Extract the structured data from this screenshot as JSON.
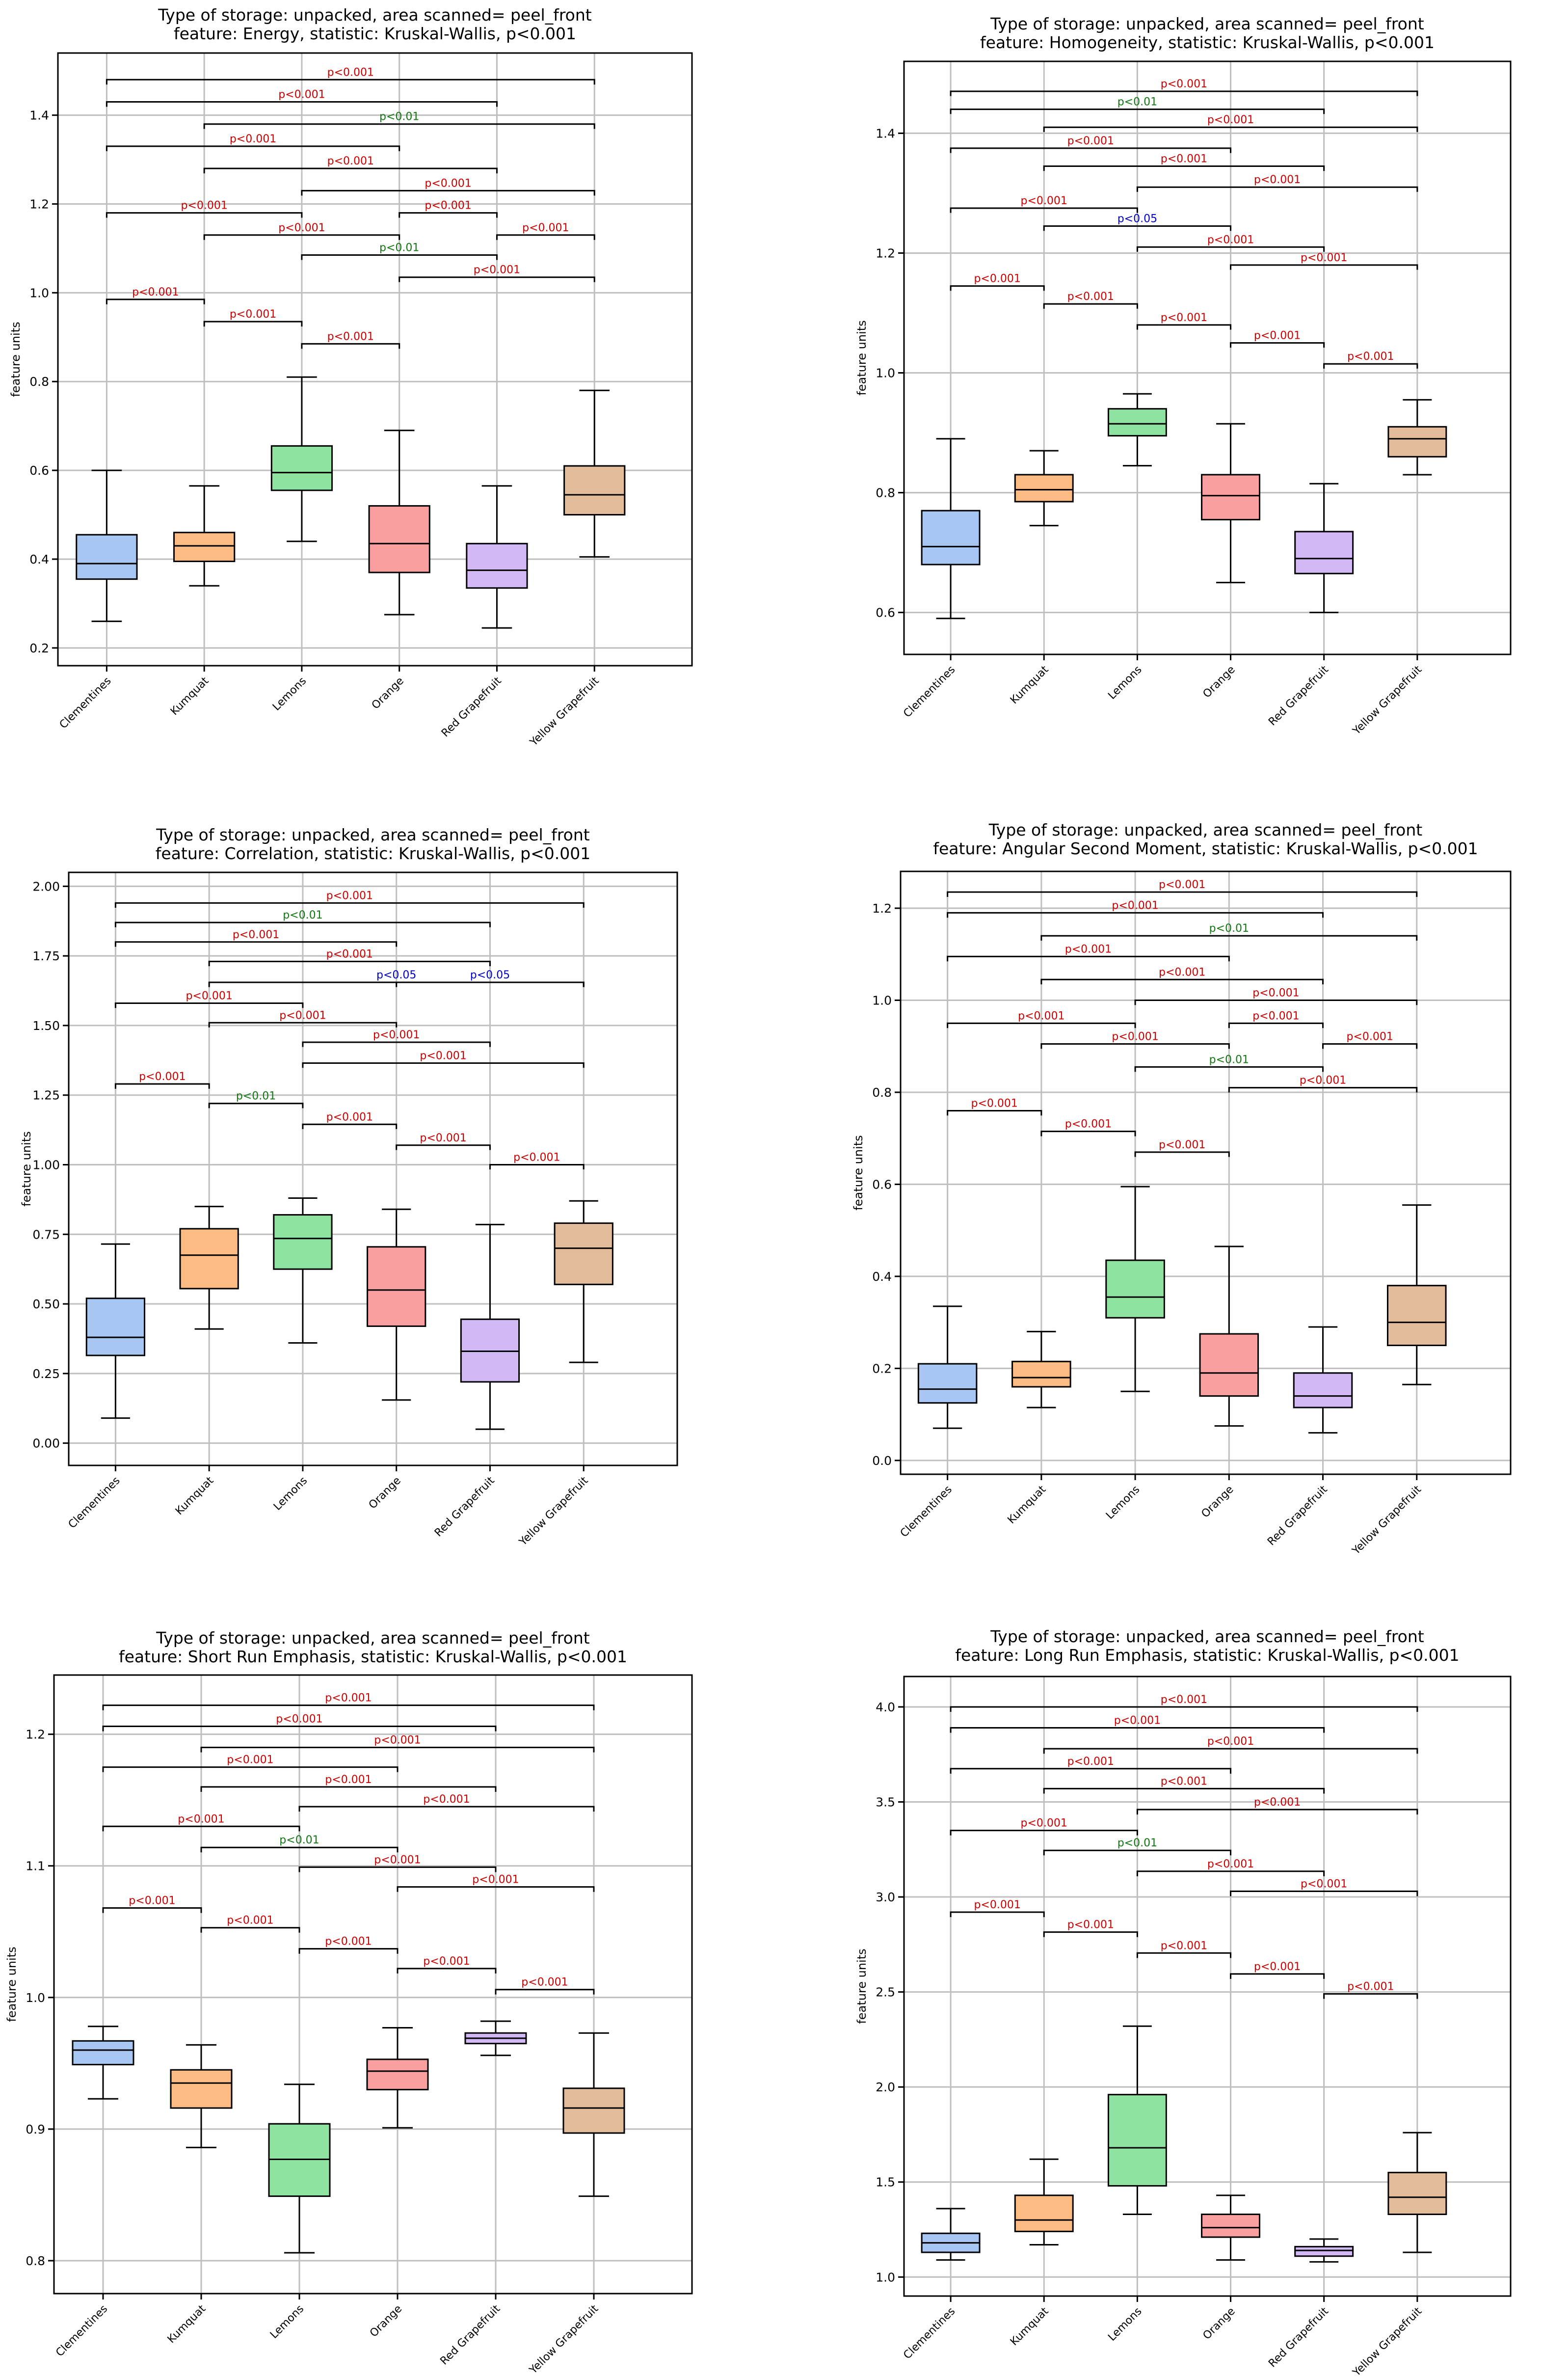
{
  "common": {
    "categories": [
      "Clementines",
      "Kumquat",
      "Lemons",
      "Orange",
      "Red Grapefruit",
      "Yellow Grapefruit"
    ],
    "ylabel": "feature units",
    "colors": [
      "#a7c7f2",
      "#fdbb84",
      "#8fe3a0",
      "#fa9f9f",
      "#d2b8f5",
      "#e2bc98"
    ],
    "sig_colors": {
      "p<0.001": "#cc0000",
      "p<0.01": "#117711",
      "p<0.05": "#0000cc"
    },
    "pairs": [
      [
        0,
        5
      ],
      [
        0,
        4
      ],
      [
        1,
        5
      ],
      [
        0,
        3
      ],
      [
        1,
        4
      ],
      [
        2,
        5
      ],
      [
        0,
        2
      ],
      [
        1,
        3
      ],
      [
        2,
        4
      ],
      [
        3,
        5
      ],
      [
        0,
        1
      ],
      [
        1,
        2
      ],
      [
        2,
        3
      ],
      [
        3,
        4
      ],
      [
        4,
        5
      ]
    ]
  },
  "chart_data": [
    {
      "type": "box",
      "title_line1": "Type of storage: unpacked, area scanned= peel_front",
      "title_line2": "feature: Energy, statistic: Kruskal-Wallis, p<0.001",
      "xlabel": "",
      "ylabel": "feature units",
      "ylim": [
        0.16,
        1.54
      ],
      "yticks": [
        0.2,
        0.4,
        0.6,
        0.8,
        1.0,
        1.2,
        1.4
      ],
      "yticklabels": [
        "0.2",
        "0.4",
        "0.6",
        "0.8",
        "1.0",
        "1.2",
        "1.4"
      ],
      "boxes": [
        {
          "min": 0.26,
          "q1": 0.355,
          "median": 0.39,
          "q3": 0.455,
          "max": 0.6
        },
        {
          "min": 0.34,
          "q1": 0.395,
          "median": 0.43,
          "q3": 0.46,
          "max": 0.565
        },
        {
          "min": 0.44,
          "q1": 0.555,
          "median": 0.595,
          "q3": 0.655,
          "max": 0.81
        },
        {
          "min": 0.275,
          "q1": 0.37,
          "median": 0.435,
          "q3": 0.52,
          "max": 0.69
        },
        {
          "min": 0.245,
          "q1": 0.335,
          "median": 0.375,
          "q3": 0.435,
          "max": 0.565
        },
        {
          "min": 0.405,
          "q1": 0.5,
          "median": 0.545,
          "q3": 0.61,
          "max": 0.78
        }
      ],
      "brackets": [
        {
          "y": 1.48,
          "label": "p<0.001"
        },
        {
          "y": 1.43,
          "label": "p<0.001"
        },
        {
          "y": 1.38,
          "label": "p<0.01"
        },
        {
          "y": 1.33,
          "label": "p<0.001"
        },
        {
          "y": 1.28,
          "label": "p<0.001"
        },
        {
          "y": 1.23,
          "label": "p<0.001"
        },
        {
          "y": 1.18,
          "label": "p<0.001"
        },
        {
          "y": 1.13,
          "label": "p<0.001"
        },
        {
          "y": 1.085,
          "label": "p<0.01"
        },
        {
          "y": 1.035,
          "label": "p<0.001"
        },
        {
          "y": 0.985,
          "label": "p<0.001"
        },
        {
          "y": 0.935,
          "label": "p<0.001"
        },
        {
          "y": 0.885,
          "label": "p<0.001"
        },
        {
          "y": 1.18,
          "label": "p<0.001"
        },
        {
          "y": 1.13,
          "label": "p<0.001"
        }
      ]
    },
    {
      "type": "box",
      "title_line1": "Type of storage: unpacked, area scanned= peel_front",
      "title_line2": "feature: Homogeneity, statistic: Kruskal-Wallis, p<0.001",
      "xlabel": "",
      "ylabel": "feature units",
      "ylim": [
        0.53,
        1.52
      ],
      "yticks": [
        0.6,
        0.8,
        1.0,
        1.2,
        1.4
      ],
      "yticklabels": [
        "0.6",
        "0.8",
        "1.0",
        "1.2",
        "1.4"
      ],
      "boxes": [
        {
          "min": 0.59,
          "q1": 0.68,
          "median": 0.71,
          "q3": 0.77,
          "max": 0.89
        },
        {
          "min": 0.745,
          "q1": 0.785,
          "median": 0.805,
          "q3": 0.83,
          "max": 0.87
        },
        {
          "min": 0.845,
          "q1": 0.895,
          "median": 0.915,
          "q3": 0.94,
          "max": 0.965
        },
        {
          "min": 0.65,
          "q1": 0.755,
          "median": 0.795,
          "q3": 0.83,
          "max": 0.915
        },
        {
          "min": 0.6,
          "q1": 0.665,
          "median": 0.69,
          "q3": 0.735,
          "max": 0.815
        },
        {
          "min": 0.83,
          "q1": 0.86,
          "median": 0.89,
          "q3": 0.91,
          "max": 0.955
        }
      ],
      "brackets": [
        {
          "y": 1.47,
          "label": "p<0.001"
        },
        {
          "y": 1.44,
          "label": "p<0.01"
        },
        {
          "y": 1.41,
          "label": "p<0.001"
        },
        {
          "y": 1.375,
          "label": "p<0.001"
        },
        {
          "y": 1.345,
          "label": "p<0.001"
        },
        {
          "y": 1.31,
          "label": "p<0.001"
        },
        {
          "y": 1.275,
          "label": "p<0.001"
        },
        {
          "y": 1.245,
          "label": "p<0.05"
        },
        {
          "y": 1.21,
          "label": "p<0.001"
        },
        {
          "y": 1.18,
          "label": "p<0.001"
        },
        {
          "y": 1.145,
          "label": "p<0.001"
        },
        {
          "y": 1.115,
          "label": "p<0.001"
        },
        {
          "y": 1.08,
          "label": "p<0.001"
        },
        {
          "y": 1.05,
          "label": "p<0.001"
        },
        {
          "y": 1.015,
          "label": "p<0.001"
        }
      ]
    },
    {
      "type": "box",
      "title_line1": "Type of storage: unpacked, area scanned= peel_front",
      "title_line2": "feature: Correlation, statistic: Kruskal-Wallis, p<0.001",
      "xlabel": "",
      "ylabel": "feature units",
      "ylim": [
        -0.08,
        2.05
      ],
      "yticks": [
        0.0,
        0.25,
        0.5,
        0.75,
        1.0,
        1.25,
        1.5,
        1.75,
        2.0
      ],
      "yticklabels": [
        "0.00",
        "0.25",
        "0.50",
        "0.75",
        "1.00",
        "1.25",
        "1.50",
        "1.75",
        "2.00"
      ],
      "boxes": [
        {
          "min": 0.09,
          "q1": 0.315,
          "median": 0.38,
          "q3": 0.52,
          "max": 0.715
        },
        {
          "min": 0.41,
          "q1": 0.555,
          "median": 0.675,
          "q3": 0.77,
          "max": 0.85
        },
        {
          "min": 0.36,
          "q1": 0.625,
          "median": 0.735,
          "q3": 0.82,
          "max": 0.88
        },
        {
          "min": 0.155,
          "q1": 0.42,
          "median": 0.55,
          "q3": 0.705,
          "max": 0.84
        },
        {
          "min": 0.05,
          "q1": 0.22,
          "median": 0.33,
          "q3": 0.445,
          "max": 0.785
        },
        {
          "min": 0.29,
          "q1": 0.57,
          "median": 0.7,
          "q3": 0.79,
          "max": 0.87
        }
      ],
      "brackets": [
        {
          "y": 1.94,
          "label": "p<0.001"
        },
        {
          "y": 1.87,
          "label": "p<0.01"
        },
        {
          "y": 1.655,
          "label": "p<0.05"
        },
        {
          "y": 1.8,
          "label": "p<0.001"
        },
        {
          "y": 1.73,
          "label": "p<0.001"
        },
        {
          "y": 1.365,
          "label": "p<0.001"
        },
        {
          "y": 1.58,
          "label": "p<0.001"
        },
        {
          "y": 1.51,
          "label": "p<0.001"
        },
        {
          "y": 1.44,
          "label": "p<0.001"
        },
        {
          "y": 1.655,
          "label": "p<0.05"
        },
        {
          "y": 1.29,
          "label": "p<0.001"
        },
        {
          "y": 1.22,
          "label": "p<0.01"
        },
        {
          "y": 1.145,
          "label": "p<0.001"
        },
        {
          "y": 1.07,
          "label": "p<0.001"
        },
        {
          "y": 1.0,
          "label": "p<0.001"
        }
      ]
    },
    {
      "type": "box",
      "title_line1": "Type of storage: unpacked, area scanned= peel_front",
      "title_line2": "feature: Angular Second Moment, statistic: Kruskal-Wallis, p<0.001",
      "xlabel": "",
      "ylabel": "feature units",
      "ylim": [
        -0.03,
        1.28
      ],
      "yticks": [
        0.0,
        0.2,
        0.4,
        0.6,
        0.8,
        1.0,
        1.2
      ],
      "yticklabels": [
        "0.0",
        "0.2",
        "0.4",
        "0.6",
        "0.8",
        "1.0",
        "1.2"
      ],
      "boxes": [
        {
          "min": 0.07,
          "q1": 0.125,
          "median": 0.155,
          "q3": 0.21,
          "max": 0.335
        },
        {
          "min": 0.115,
          "q1": 0.16,
          "median": 0.18,
          "q3": 0.215,
          "max": 0.28
        },
        {
          "min": 0.15,
          "q1": 0.31,
          "median": 0.355,
          "q3": 0.435,
          "max": 0.595
        },
        {
          "min": 0.075,
          "q1": 0.14,
          "median": 0.19,
          "q3": 0.275,
          "max": 0.465
        },
        {
          "min": 0.06,
          "q1": 0.115,
          "median": 0.14,
          "q3": 0.19,
          "max": 0.29
        },
        {
          "min": 0.165,
          "q1": 0.25,
          "median": 0.3,
          "q3": 0.38,
          "max": 0.555
        }
      ],
      "brackets": [
        {
          "y": 1.235,
          "label": "p<0.001"
        },
        {
          "y": 1.19,
          "label": "p<0.001"
        },
        {
          "y": 1.14,
          "label": "p<0.01"
        },
        {
          "y": 1.095,
          "label": "p<0.001"
        },
        {
          "y": 1.045,
          "label": "p<0.001"
        },
        {
          "y": 1.0,
          "label": "p<0.001"
        },
        {
          "y": 0.95,
          "label": "p<0.001"
        },
        {
          "y": 0.905,
          "label": "p<0.001"
        },
        {
          "y": 0.855,
          "label": "p<0.01"
        },
        {
          "y": 0.81,
          "label": "p<0.001"
        },
        {
          "y": 0.76,
          "label": "p<0.001"
        },
        {
          "y": 0.715,
          "label": "p<0.001"
        },
        {
          "y": 0.67,
          "label": "p<0.001"
        },
        {
          "y": 0.95,
          "label": "p<0.001"
        },
        {
          "y": 0.905,
          "label": "p<0.001"
        }
      ]
    },
    {
      "type": "box",
      "title_line1": "Type of storage: unpacked, area scanned= peel_front",
      "title_line2": "feature: Short Run Emphasis, statistic: Kruskal-Wallis, p<0.001",
      "xlabel": "",
      "ylabel": "feature units",
      "ylim": [
        0.775,
        1.245
      ],
      "yticks": [
        0.8,
        0.9,
        1.0,
        1.1,
        1.2
      ],
      "yticklabels": [
        "0.8",
        "0.9",
        "1.0",
        "1.1",
        "1.2"
      ],
      "boxes": [
        {
          "min": 0.923,
          "q1": 0.949,
          "median": 0.96,
          "q3": 0.967,
          "max": 0.978
        },
        {
          "min": 0.886,
          "q1": 0.916,
          "median": 0.935,
          "q3": 0.945,
          "max": 0.964
        },
        {
          "min": 0.806,
          "q1": 0.849,
          "median": 0.877,
          "q3": 0.904,
          "max": 0.934
        },
        {
          "min": 0.901,
          "q1": 0.93,
          "median": 0.944,
          "q3": 0.953,
          "max": 0.977
        },
        {
          "min": 0.956,
          "q1": 0.965,
          "median": 0.969,
          "q3": 0.973,
          "max": 0.982
        },
        {
          "min": 0.849,
          "q1": 0.897,
          "median": 0.916,
          "q3": 0.931,
          "max": 0.973
        }
      ],
      "brackets": [
        {
          "y": 1.222,
          "label": "p<0.001"
        },
        {
          "y": 1.206,
          "label": "p<0.001"
        },
        {
          "y": 1.19,
          "label": "p<0.001"
        },
        {
          "y": 1.175,
          "label": "p<0.001"
        },
        {
          "y": 1.16,
          "label": "p<0.001"
        },
        {
          "y": 1.145,
          "label": "p<0.001"
        },
        {
          "y": 1.13,
          "label": "p<0.001"
        },
        {
          "y": 1.114,
          "label": "p<0.01"
        },
        {
          "y": 1.099,
          "label": "p<0.001"
        },
        {
          "y": 1.084,
          "label": "p<0.001"
        },
        {
          "y": 1.068,
          "label": "p<0.001"
        },
        {
          "y": 1.053,
          "label": "p<0.001"
        },
        {
          "y": 1.037,
          "label": "p<0.001"
        },
        {
          "y": 1.022,
          "label": "p<0.001"
        },
        {
          "y": 1.006,
          "label": "p<0.001"
        }
      ]
    },
    {
      "type": "box",
      "title_line1": "Type of storage: unpacked, area scanned= peel_front",
      "title_line2": "feature: Long Run Emphasis, statistic: Kruskal-Wallis, p<0.001",
      "xlabel": "",
      "ylabel": "feature units",
      "ylim": [
        0.9,
        4.16
      ],
      "yticks": [
        1.0,
        1.5,
        2.0,
        2.5,
        3.0,
        3.5,
        4.0
      ],
      "yticklabels": [
        "1.0",
        "1.5",
        "2.0",
        "2.5",
        "3.0",
        "3.5",
        "4.0"
      ],
      "boxes": [
        {
          "min": 1.09,
          "q1": 1.13,
          "median": 1.18,
          "q3": 1.23,
          "max": 1.36
        },
        {
          "min": 1.17,
          "q1": 1.24,
          "median": 1.3,
          "q3": 1.43,
          "max": 1.62
        },
        {
          "min": 1.33,
          "q1": 1.48,
          "median": 1.68,
          "q3": 1.96,
          "max": 2.32
        },
        {
          "min": 1.09,
          "q1": 1.21,
          "median": 1.26,
          "q3": 1.33,
          "max": 1.43
        },
        {
          "min": 1.08,
          "q1": 1.11,
          "median": 1.14,
          "q3": 1.16,
          "max": 1.2
        },
        {
          "min": 1.13,
          "q1": 1.33,
          "median": 1.42,
          "q3": 1.55,
          "max": 1.76
        }
      ],
      "brackets": [
        {
          "y": 4.0,
          "label": "p<0.001"
        },
        {
          "y": 3.89,
          "label": "p<0.001"
        },
        {
          "y": 3.78,
          "label": "p<0.001"
        },
        {
          "y": 3.675,
          "label": "p<0.001"
        },
        {
          "y": 3.57,
          "label": "p<0.001"
        },
        {
          "y": 3.46,
          "label": "p<0.001"
        },
        {
          "y": 3.35,
          "label": "p<0.001"
        },
        {
          "y": 3.245,
          "label": "p<0.01"
        },
        {
          "y": 3.135,
          "label": "p<0.001"
        },
        {
          "y": 3.03,
          "label": "p<0.001"
        },
        {
          "y": 2.92,
          "label": "p<0.001"
        },
        {
          "y": 2.815,
          "label": "p<0.001"
        },
        {
          "y": 2.705,
          "label": "p<0.001"
        },
        {
          "y": 2.595,
          "label": "p<0.001"
        },
        {
          "y": 2.49,
          "label": "p<0.001"
        }
      ]
    }
  ]
}
